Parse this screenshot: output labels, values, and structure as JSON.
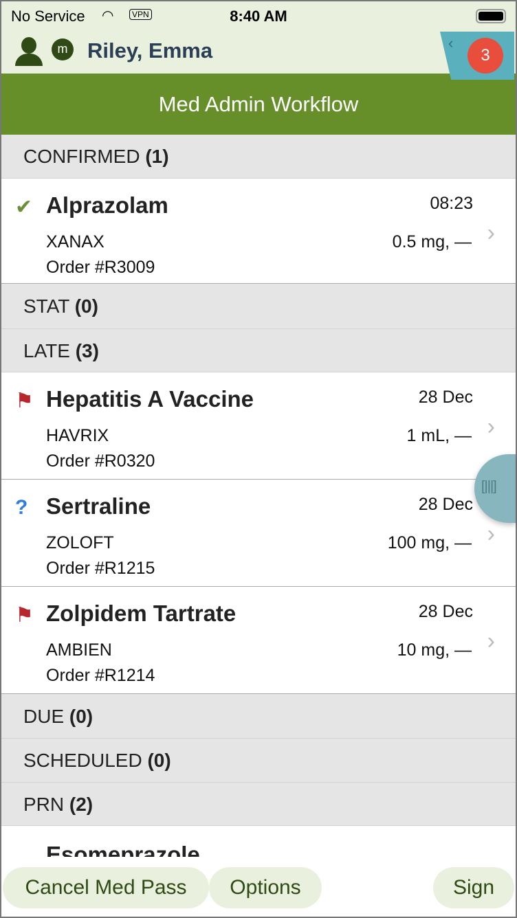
{
  "status_bar": {
    "carrier": "No Service",
    "vpn": "VPN",
    "time": "8:40 AM"
  },
  "header": {
    "patient_initial": "m",
    "patient_name": "Riley, Emma",
    "notification_count": "3"
  },
  "title": "Med Admin Workflow",
  "sections": {
    "confirmed": {
      "label": "CONFIRMED",
      "count": "(1)"
    },
    "stat": {
      "label": "STAT",
      "count": "(0)"
    },
    "late": {
      "label": "LATE",
      "count": "(3)"
    },
    "due": {
      "label": "DUE",
      "count": "(0)"
    },
    "scheduled": {
      "label": "SCHEDULED",
      "count": "(0)"
    },
    "prn": {
      "label": "PRN",
      "count": "(2)"
    }
  },
  "meds": [
    {
      "name": "Alprazolam",
      "time": "08:23",
      "brand": "XANAX",
      "dose": "0.5 mg,  —",
      "order": "Order #R3009",
      "icon": "check-icon"
    },
    {
      "name": "Hepatitis A Vaccine",
      "time": "28 Dec",
      "brand": "HAVRIX",
      "dose": "1 mL,  —",
      "order": "Order #R0320",
      "icon": "flag-icon"
    },
    {
      "name": "Sertraline",
      "time": "28 Dec",
      "brand": "ZOLOFT",
      "dose": "100 mg,  —",
      "order": "Order #R1215",
      "icon": "question-icon"
    },
    {
      "name": "Zolpidem Tartrate",
      "time": "28 Dec",
      "brand": "AMBIEN",
      "dose": "10 mg,  —",
      "order": "Order #R1214",
      "icon": "flag-icon"
    },
    {
      "name": "Esomeprazole"
    }
  ],
  "buttons": {
    "cancel": "Cancel Med Pass",
    "options": "Options",
    "sign": "Sign"
  },
  "colors": {
    "header_bg": "#e9f0dd",
    "title_bar": "#668f2a",
    "badge": "#e94e3c",
    "tab": "#5ab0bd",
    "flag": "#b8262d"
  }
}
